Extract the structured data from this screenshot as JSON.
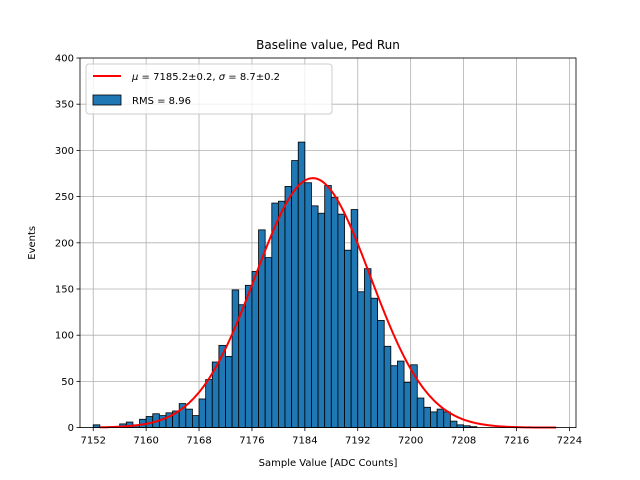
{
  "chart_data": {
    "type": "bar",
    "title": "Baseline value, Ped Run",
    "xlabel": "Sample Value [ADC Counts]",
    "ylabel": "Events",
    "xlim": [
      7150,
      7225
    ],
    "ylim": [
      0,
      400
    ],
    "xticks": [
      7152,
      7160,
      7168,
      7176,
      7184,
      7192,
      7200,
      7208,
      7216,
      7224
    ],
    "yticks": [
      0,
      50,
      100,
      150,
      200,
      250,
      300,
      350,
      400
    ],
    "grid": true,
    "legend_position": "top-left",
    "bins": {
      "start": 7152,
      "width": 1,
      "counts": [
        3,
        0,
        0,
        0,
        4,
        6,
        3,
        9,
        12,
        15,
        13,
        16,
        18,
        26,
        20,
        13,
        31,
        52,
        71,
        89,
        77,
        149,
        133,
        154,
        169,
        214,
        184,
        243,
        245,
        261,
        289,
        309,
        265,
        240,
        232,
        262,
        249,
        231,
        192,
        236,
        147,
        172,
        140,
        116,
        88,
        67,
        72,
        49,
        68,
        32,
        22,
        17,
        20,
        17,
        7,
        3,
        2,
        1,
        0,
        0,
        0,
        0,
        0
      ]
    },
    "series": [
      {
        "name": "RMS = 8.96",
        "kind": "histogram",
        "color": "#1f77b4",
        "edge_color": "#000000"
      },
      {
        "name": "$\\mu = 7185.2\\pm0.2$, $\\sigma = 8.7\\pm0.2$",
        "kind": "gaussian_fit",
        "color": "#ff0000",
        "mu": 7185.2,
        "sigma": 8.7,
        "amplitude": 270,
        "x_range": [
          7153,
          7222
        ]
      }
    ],
    "legend": [
      {
        "label_parts": [
          "μ",
          " = 7185.2±0.2, ",
          "σ",
          " = 8.7±0.2"
        ],
        "kind": "line",
        "color": "#ff0000"
      },
      {
        "label_parts": [
          "RMS = 8.96"
        ],
        "kind": "patch",
        "color": "#1f77b4"
      }
    ]
  }
}
